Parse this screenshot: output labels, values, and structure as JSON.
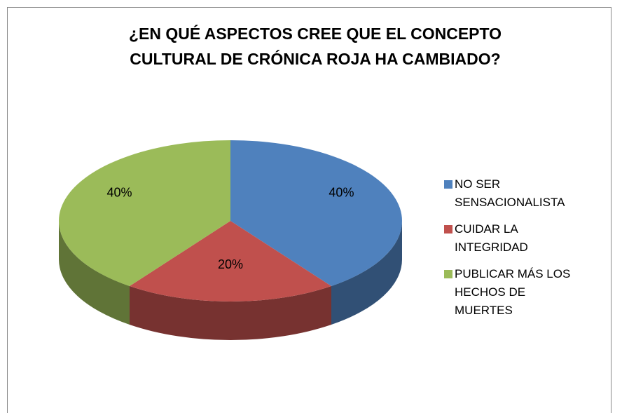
{
  "chart_data": {
    "type": "pie",
    "title": "¿EN QUÉ ASPECTOS CREE QUE EL CONCEPTO CULTURAL DE CRÓNICA ROJA HA CAMBIADO?",
    "categories": [
      "NO SER SENSACIONALISTA",
      "CUIDAR LA INTEGRIDAD",
      "PUBLICAR MÁS LOS HECHOS DE MUERTES"
    ],
    "values": [
      40,
      20,
      40
    ],
    "value_labels": [
      "40%",
      "20%",
      "40%"
    ],
    "colors": [
      "#4f81bd",
      "#c0504d",
      "#9bbb59"
    ],
    "legend": "right"
  }
}
